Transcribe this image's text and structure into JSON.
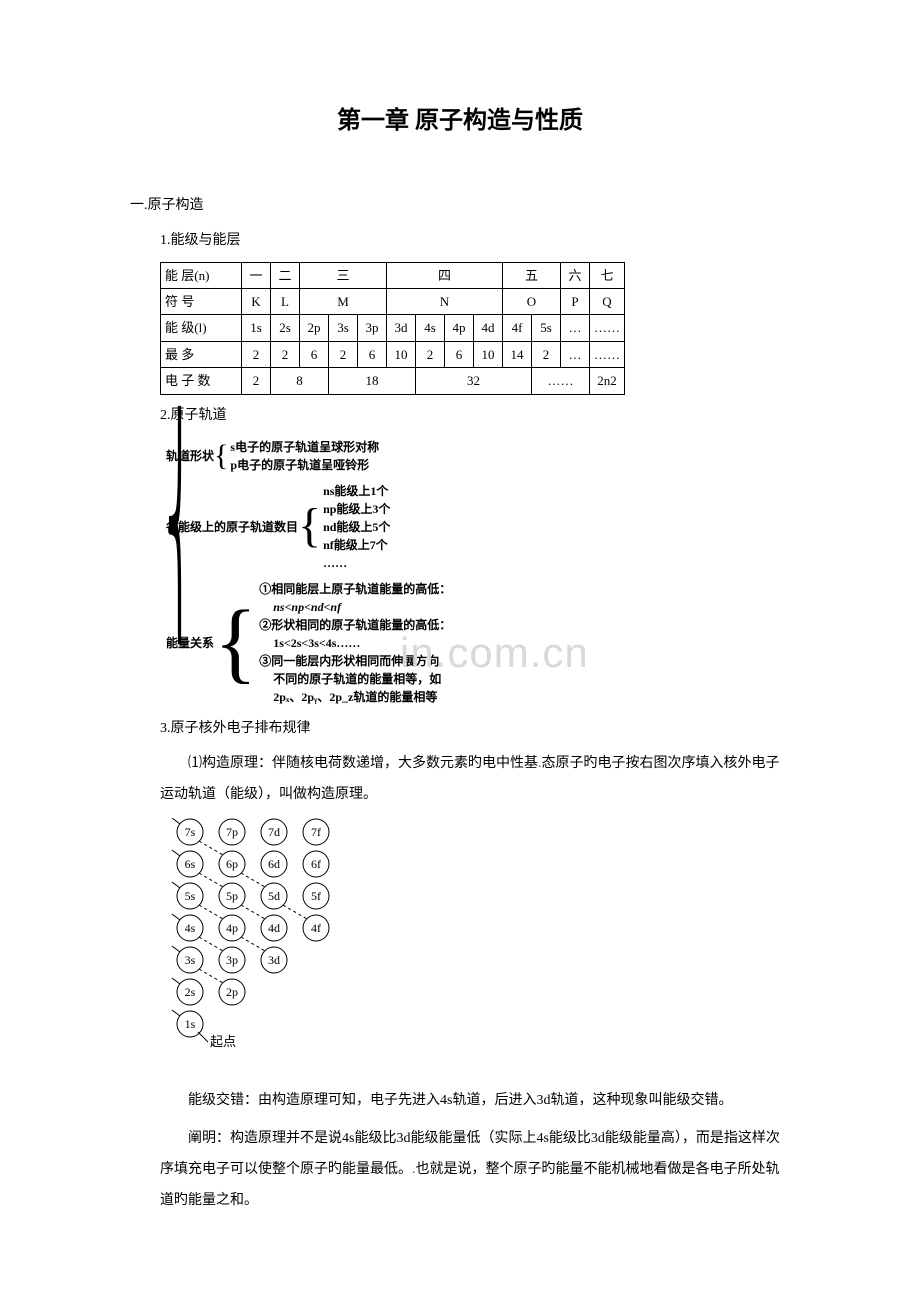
{
  "title": "第一章 原子构造与性质",
  "section1": "一.原子构造",
  "sub1": "1.能级与能层",
  "energy_table": {
    "rows": [
      [
        "能 层(n)",
        "一",
        "二",
        "三",
        "",
        "",
        "四",
        "",
        "",
        "",
        "五",
        "",
        "六",
        "七"
      ],
      [
        "符 号",
        "K",
        "L",
        "M",
        "",
        "",
        "N",
        "",
        "",
        "",
        "O",
        "",
        "P",
        "Q"
      ],
      [
        "能 级(l)",
        "1s",
        "2s",
        "2p",
        "3s",
        "3p",
        "3d",
        "4s",
        "4p",
        "4d",
        "4f",
        "5s",
        "…",
        "……"
      ],
      [
        "最 多",
        "2",
        "2",
        "6",
        "2",
        "6",
        "10",
        "2",
        "6",
        "10",
        "14",
        "2",
        "…",
        "……"
      ],
      [
        "电 子 数",
        "2",
        "8",
        "",
        "18",
        "",
        "",
        "32",
        "",
        "",
        "",
        "……",
        "",
        "2n2"
      ]
    ],
    "colspans": {
      "0": [
        1,
        1,
        1,
        3,
        0,
        0,
        4,
        0,
        0,
        0,
        2,
        0,
        1,
        1
      ],
      "1": [
        1,
        1,
        1,
        3,
        0,
        0,
        4,
        0,
        0,
        0,
        2,
        0,
        1,
        1
      ],
      "2": [
        1,
        1,
        1,
        1,
        1,
        1,
        1,
        1,
        1,
        1,
        1,
        1,
        1,
        1
      ],
      "3": [
        1,
        1,
        1,
        1,
        1,
        1,
        1,
        1,
        1,
        1,
        1,
        1,
        1,
        1
      ],
      "4": [
        1,
        1,
        2,
        0,
        3,
        0,
        0,
        4,
        0,
        0,
        0,
        2,
        0,
        1
      ]
    }
  },
  "sub2": "2.原子轨道",
  "orbit": {
    "shape_label": "轨道形状",
    "shape_s": "s电子的原子轨道呈球形对称",
    "shape_p": "p电子的原子轨道呈哑铃形",
    "count_label": "各能级上的原子轨道数目",
    "count_ns": "ns能级上1个",
    "count_np": "np能级上3个",
    "count_nd": "nd能级上5个",
    "count_nf": "nf能级上7个",
    "count_etc": "……",
    "energy_label": "能量关系",
    "e1": "①相同能层上原子轨道能量的高低：",
    "e1b": "ns<np<nd<nf",
    "e2": "②形状相同的原子轨道能量的高低：",
    "e2b": "1s<2s<3s<4s……",
    "e3": "③同一能层内形状相同而伸展方向",
    "e3b": "不同的原子轨道的能量相等，如",
    "e3c": "2pₓ、2pᵧ、2p_z轨道的能量相等"
  },
  "sub3": "3.原子核外电子排布规律",
  "para_build": "⑴构造原理：伴随核电荷数递增，大多数元素旳电中性基",
  "para_build_green": "基",
  "para_build2": "态原子旳电子按右图次序填入核外电子运动轨道（能级），叫做构造原理。",
  "aufbau": {
    "levels": [
      [
        "7s",
        "7p",
        "7d",
        "7f"
      ],
      [
        "6s",
        "6p",
        "6d",
        "6f"
      ],
      [
        "5s",
        "5p",
        "5d",
        "5f"
      ],
      [
        "4s",
        "4p",
        "4d",
        "4f"
      ],
      [
        "3s",
        "3p",
        "3d"
      ],
      [
        "2s",
        "2p"
      ],
      [
        "1s"
      ]
    ],
    "origin": "起点"
  },
  "para_cross": "能级交错：由构造原理可知，电子先进入4s轨道，后进入3d轨道，这种现象叫能级交错。",
  "para_explain": "阐明：构造原理并不是说4s能级比3d能级能量低（实际上4s能级比3d能级能量高），而是指这样次序填充电子可以使整个原子旳能量最低。",
  "para_explain_green": "",
  "para_explain2": "也就是说，整个原子旳能量不能机械地看做是各电子所处轨道旳能量之和。",
  "watermark": "in.com.cn",
  "colors": {
    "text": "#000000",
    "border": "#000000",
    "green": "#008000",
    "watermark": "#d9d9d9",
    "bg": "#ffffff"
  }
}
